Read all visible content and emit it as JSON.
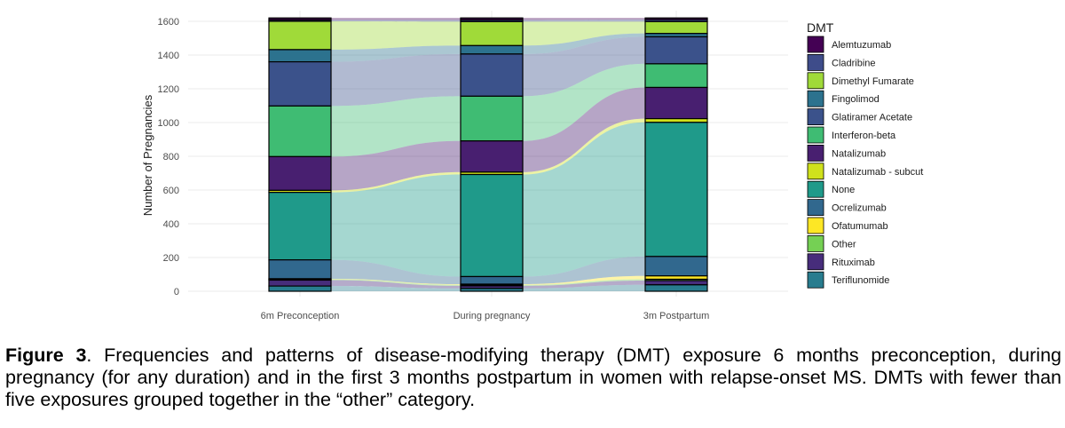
{
  "caption": {
    "label": "Figure 3",
    "text": ". Frequencies and patterns of disease-modifying therapy (DMT) exposure 6 months preconception, during pregnancy (for any duration) and in the first 3 months postpartum in women with relapse-onset MS. DMTs with fewer than five exposures grouped together in the “other” category."
  },
  "chart_data": {
    "type": "alluvial",
    "ylabel": "Number of Pregnancies",
    "ylim": [
      0,
      1650
    ],
    "yticks": [
      0,
      200,
      400,
      600,
      800,
      1000,
      1200,
      1400,
      1600
    ],
    "grid": true,
    "legend_title": "DMT",
    "legend_position": "right",
    "categories": [
      "6m Preconception",
      "During pregnancy",
      "3m Postpartum"
    ],
    "series": [
      {
        "name": "Alemtuzumab",
        "color": "#440154",
        "values": [
          12,
          12,
          10
        ]
      },
      {
        "name": "Cladribine",
        "color": "#3E4C8A",
        "values": [
          8,
          10,
          12
        ]
      },
      {
        "name": "Dimethyl Fumarate",
        "color": "#A0DA39",
        "values": [
          168,
          142,
          70
        ]
      },
      {
        "name": "Fingolimod",
        "color": "#2C728E",
        "values": [
          72,
          50,
          20
        ]
      },
      {
        "name": "Glatiramer Acetate",
        "color": "#3B528B",
        "values": [
          262,
          250,
          160
        ]
      },
      {
        "name": "Interferon-beta",
        "color": "#3FBC73",
        "values": [
          300,
          265,
          140
        ]
      },
      {
        "name": "Natalizumab",
        "color": "#481F70",
        "values": [
          200,
          185,
          185
        ]
      },
      {
        "name": "Natalizumab - subcut",
        "color": "#D0E11C",
        "values": [
          12,
          14,
          22
        ]
      },
      {
        "name": "None",
        "color": "#1F9A8A",
        "values": [
          400,
          605,
          795
        ]
      },
      {
        "name": "Ocrelizumab",
        "color": "#31688E",
        "values": [
          112,
          45,
          115
        ]
      },
      {
        "name": "Ofatumumab",
        "color": "#FDE725",
        "values": [
          3,
          4,
          20
        ]
      },
      {
        "name": "Other",
        "color": "#75D054",
        "values": [
          5,
          6,
          8
        ]
      },
      {
        "name": "Rituximab",
        "color": "#472D7B",
        "values": [
          35,
          15,
          25
        ]
      },
      {
        "name": "Teriflunomide",
        "color": "#287C8E",
        "values": [
          31,
          17,
          38
        ]
      }
    ]
  }
}
